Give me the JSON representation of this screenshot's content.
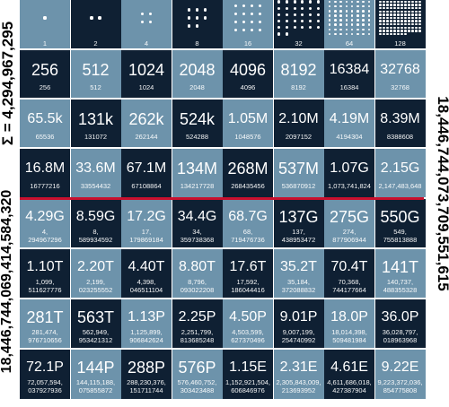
{
  "labels": {
    "top_left": "Σ = 4,294,967,295",
    "bottom_left": "18,446,744,069,414,584,320",
    "right": "18,446,744,073,709,551,615"
  },
  "dot_row": [
    "1",
    "2",
    "4",
    "8",
    "16",
    "32",
    "64",
    "128"
  ],
  "rows": [
    [
      {
        "big": "256",
        "small": [
          "256"
        ]
      },
      {
        "big": "512",
        "small": [
          "512"
        ]
      },
      {
        "big": "1024",
        "small": [
          "1024"
        ]
      },
      {
        "big": "2048",
        "small": [
          "2048"
        ]
      },
      {
        "big": "4096",
        "small": [
          "4096"
        ]
      },
      {
        "big": "8192",
        "small": [
          "8192"
        ]
      },
      {
        "big": "16384",
        "small": [
          "16384"
        ]
      },
      {
        "big": "32768",
        "small": [
          "32768"
        ]
      }
    ],
    [
      {
        "big": "65.5k",
        "small": [
          "65536"
        ]
      },
      {
        "big": "131k",
        "small": [
          "131072"
        ]
      },
      {
        "big": "262k",
        "small": [
          "262144"
        ]
      },
      {
        "big": "524k",
        "small": [
          "524288"
        ]
      },
      {
        "big": "1.05M",
        "small": [
          "1048576"
        ]
      },
      {
        "big": "2.10M",
        "small": [
          "2097152"
        ]
      },
      {
        "big": "4.19M",
        "small": [
          "4194304"
        ]
      },
      {
        "big": "8.39M",
        "small": [
          "8388608"
        ]
      }
    ],
    [
      {
        "big": "16.8M",
        "small": [
          "16777216"
        ]
      },
      {
        "big": "33.6M",
        "small": [
          "33554432"
        ]
      },
      {
        "big": "67.1M",
        "small": [
          "67108864"
        ]
      },
      {
        "big": "134M",
        "small": [
          "134217728"
        ]
      },
      {
        "big": "268M",
        "small": [
          "268435456"
        ]
      },
      {
        "big": "537M",
        "small": [
          "536870912"
        ]
      },
      {
        "big": "1.07G",
        "small": [
          "1,073,741,824"
        ]
      },
      {
        "big": "2.15G",
        "small": [
          "2,147,483,648"
        ]
      }
    ],
    [
      {
        "big": "4.29G",
        "small": [
          "4,",
          "294967296"
        ]
      },
      {
        "big": "8.59G",
        "small": [
          "8,",
          "589934592"
        ]
      },
      {
        "big": "17.2G",
        "small": [
          "17,",
          "179869184"
        ]
      },
      {
        "big": "34.4G",
        "small": [
          "34,",
          "359738368"
        ]
      },
      {
        "big": "68.7G",
        "small": [
          "68,",
          "719476736"
        ]
      },
      {
        "big": "137G",
        "small": [
          "137,",
          "438953472"
        ]
      },
      {
        "big": "275G",
        "small": [
          "274,",
          "877906944"
        ]
      },
      {
        "big": "550G",
        "small": [
          "549,",
          "755813888"
        ]
      }
    ],
    [
      {
        "big": "1.10T",
        "small": [
          "1,099,",
          "511627776"
        ]
      },
      {
        "big": "2.20T",
        "small": [
          "2,199,",
          "023255552"
        ]
      },
      {
        "big": "4.40T",
        "small": [
          "4,398,",
          "046511104"
        ]
      },
      {
        "big": "8.80T",
        "small": [
          "8,796,",
          "093022208"
        ]
      },
      {
        "big": "17.6T",
        "small": [
          "17,592,",
          "186044416"
        ]
      },
      {
        "big": "35.2T",
        "small": [
          "35,184,",
          "372088832"
        ]
      },
      {
        "big": "70.4T",
        "small": [
          "70,368,",
          "744177664"
        ]
      },
      {
        "big": "141T",
        "small": [
          "140,737,",
          "488355328"
        ]
      }
    ],
    [
      {
        "big": "281T",
        "small": [
          "281,474,",
          "976710656"
        ]
      },
      {
        "big": "563T",
        "small": [
          "562,949,",
          "953421312"
        ]
      },
      {
        "big": "1.13P",
        "small": [
          "1,125,899,",
          "906842624"
        ]
      },
      {
        "big": "2.25P",
        "small": [
          "2,251,799,",
          "813685248"
        ]
      },
      {
        "big": "4.50P",
        "small": [
          "4,503,599,",
          "627370496"
        ]
      },
      {
        "big": "9.01P",
        "small": [
          "9,007,199,",
          "254740992"
        ]
      },
      {
        "big": "18.0P",
        "small": [
          "18,014,398,",
          "509481984"
        ]
      },
      {
        "big": "36.0P",
        "small": [
          "36,028,797,",
          "018963968"
        ]
      }
    ],
    [
      {
        "big": "72.1P",
        "small": [
          "72,057,594,",
          "037927936"
        ]
      },
      {
        "big": "144P",
        "small": [
          "144,115,188,",
          "075855872"
        ]
      },
      {
        "big": "288P",
        "small": [
          "288,230,376,",
          "151711744"
        ]
      },
      {
        "big": "576P",
        "small": [
          "576,460,752,",
          "303423488"
        ]
      },
      {
        "big": "1.15E",
        "small": [
          "1,152,921,504,",
          "606846976"
        ]
      },
      {
        "big": "2.31E",
        "small": [
          "2,305,843,009,",
          "213693952"
        ]
      },
      {
        "big": "4.61E",
        "small": [
          "4,611,686,018,",
          "427387904"
        ]
      },
      {
        "big": "9.22E",
        "small": [
          "9,223,372,036,",
          "854775808"
        ]
      }
    ]
  ]
}
